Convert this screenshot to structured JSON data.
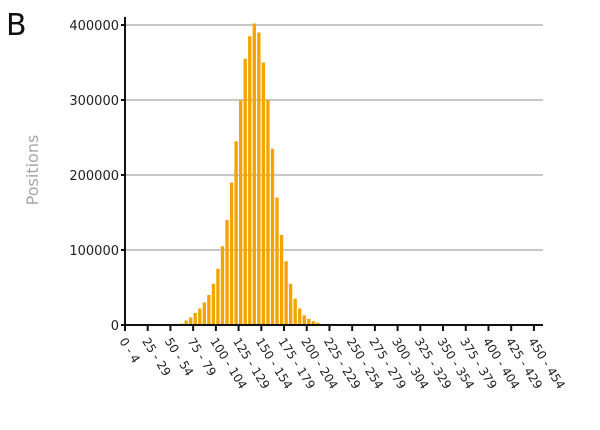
{
  "panel_label": "B",
  "chart_data": {
    "type": "bar",
    "ylabel": "Positions",
    "xlabel": "",
    "ylim": [
      0,
      400000
    ],
    "yticks": [
      0,
      100000,
      200000,
      300000,
      400000
    ],
    "grid": true,
    "bin_width": 5,
    "x_start": 0,
    "x_end": 460,
    "x_tick_labels": [
      "0 - 4",
      "25 - 29",
      "50 - 54",
      "75 - 79",
      "100 - 104",
      "125 - 129",
      "150 - 154",
      "175 - 179",
      "200 - 204",
      "225 - 229",
      "250 - 254",
      "275 - 279",
      "300 - 304",
      "325 - 329",
      "350 - 354",
      "375 - 379",
      "400 - 404",
      "425 - 429",
      "450 - 454"
    ],
    "bins": [
      {
        "x": 60,
        "value": 2000
      },
      {
        "x": 65,
        "value": 6000
      },
      {
        "x": 70,
        "value": 10000
      },
      {
        "x": 75,
        "value": 16000
      },
      {
        "x": 80,
        "value": 22000
      },
      {
        "x": 85,
        "value": 30000
      },
      {
        "x": 90,
        "value": 40000
      },
      {
        "x": 95,
        "value": 55000
      },
      {
        "x": 100,
        "value": 75000
      },
      {
        "x": 105,
        "value": 105000
      },
      {
        "x": 110,
        "value": 140000
      },
      {
        "x": 115,
        "value": 190000
      },
      {
        "x": 120,
        "value": 245000
      },
      {
        "x": 125,
        "value": 300000
      },
      {
        "x": 130,
        "value": 355000
      },
      {
        "x": 135,
        "value": 385000
      },
      {
        "x": 140,
        "value": 402000
      },
      {
        "x": 145,
        "value": 390000
      },
      {
        "x": 150,
        "value": 350000
      },
      {
        "x": 155,
        "value": 300000
      },
      {
        "x": 160,
        "value": 235000
      },
      {
        "x": 165,
        "value": 170000
      },
      {
        "x": 170,
        "value": 120000
      },
      {
        "x": 175,
        "value": 85000
      },
      {
        "x": 180,
        "value": 55000
      },
      {
        "x": 185,
        "value": 35000
      },
      {
        "x": 190,
        "value": 22000
      },
      {
        "x": 195,
        "value": 13000
      },
      {
        "x": 200,
        "value": 8000
      },
      {
        "x": 205,
        "value": 5000
      },
      {
        "x": 210,
        "value": 3000
      },
      {
        "x": 215,
        "value": 1500
      }
    ],
    "colors": {
      "bar": "#f5a300",
      "bar_edge": "#ffffff",
      "grid": "#c8c8c8",
      "axis": "#111111",
      "axis_label": "#a6a6a6"
    }
  }
}
